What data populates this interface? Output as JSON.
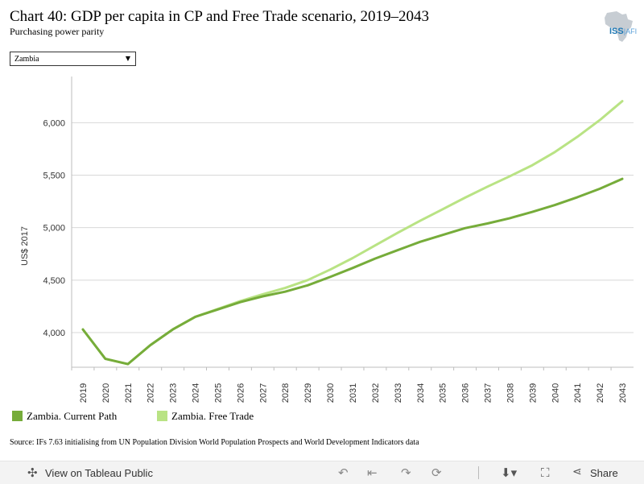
{
  "header": {
    "title": "Chart 40: GDP per capita in CP and Free Trade scenario, 2019–2043",
    "subtitle": "Purchasing power parity",
    "logo_text": "ISS",
    "logo_suffix": "AFI"
  },
  "filter": {
    "selected": "Zambia"
  },
  "chart_data": {
    "type": "line",
    "title": "Chart 40: GDP per capita in CP and Free Trade scenario, 2019–2043",
    "subtitle": "Purchasing power parity",
    "ylabel": "US$ 2017",
    "xlabel": "",
    "x": [
      "2019",
      "2020",
      "2021",
      "2022",
      "2023",
      "2024",
      "2025",
      "2026",
      "2027",
      "2028",
      "2029",
      "2030",
      "2031",
      "2032",
      "2033",
      "2034",
      "2035",
      "2036",
      "2037",
      "2038",
      "2039",
      "2040",
      "2041",
      "2042",
      "2043"
    ],
    "ylim": [
      3670,
      6440
    ],
    "yticks": [
      4000,
      4500,
      5000,
      5500,
      6000
    ],
    "ytick_labels": [
      "4,000",
      "4,500",
      "5,000",
      "5,500",
      "6,000"
    ],
    "grid": true,
    "legend": "bottom",
    "series": [
      {
        "name": "Zambia. Current Path",
        "color": "#76ac3a",
        "values": [
          4030,
          3750,
          3700,
          3880,
          4030,
          4150,
          4220,
          4290,
          4345,
          4390,
          4450,
          4530,
          4615,
          4705,
          4785,
          4865,
          4930,
          4995,
          5040,
          5090,
          5150,
          5215,
          5290,
          5370,
          5465
        ]
      },
      {
        "name": "Zambia. Free Trade",
        "color": "#b9e384",
        "values": [
          4030,
          3750,
          3700,
          3880,
          4030,
          4150,
          4225,
          4300,
          4365,
          4425,
          4500,
          4600,
          4710,
          4830,
          4950,
          5065,
          5175,
          5285,
          5390,
          5490,
          5595,
          5720,
          5865,
          6025,
          6205
        ]
      }
    ]
  },
  "source": "Source: IFs 7.63 initialising from UN Population Division World Population Prospects and World Development Indicators data",
  "footer": {
    "view_label": "View on Tableau Public",
    "share_label": "Share"
  }
}
